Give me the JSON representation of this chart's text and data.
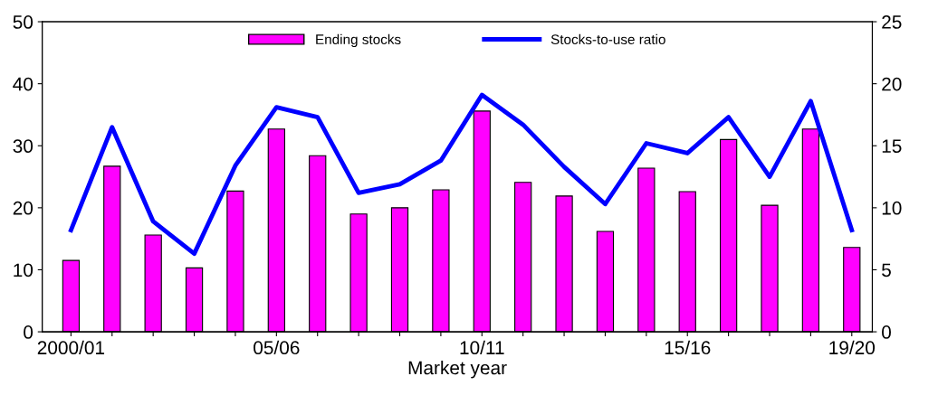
{
  "chart_data": {
    "type": "bar",
    "xlabel": "Market year",
    "categories": [
      "2000/01",
      null,
      null,
      null,
      null,
      "05/06",
      null,
      null,
      null,
      null,
      "10/11",
      null,
      null,
      null,
      null,
      "15/16",
      null,
      null,
      null,
      "19/20"
    ],
    "series": [
      {
        "name": "Ending stocks",
        "color": "#ff00ff",
        "values": [
          11.5,
          26.7,
          15.6,
          10.3,
          22.7,
          32.7,
          28.4,
          19.0,
          20.0,
          22.9,
          35.6,
          24.1,
          21.9,
          16.2,
          26.4,
          22.6,
          31.0,
          20.4,
          32.7,
          13.6
        ]
      },
      {
        "name": "Stocks-to-use ratio",
        "type": "line",
        "axis": "y2",
        "color": "#0000ff",
        "values": [
          8.2,
          16.5,
          8.9,
          6.3,
          13.4,
          18.1,
          17.3,
          11.2,
          11.9,
          13.8,
          19.1,
          16.7,
          13.3,
          10.3,
          15.2,
          14.4,
          17.3,
          12.5,
          18.6,
          8.2
        ]
      }
    ],
    "ylim": [
      0,
      50
    ],
    "yticks": [
      0,
      10,
      20,
      30,
      40,
      50
    ],
    "y2lim": [
      0,
      25
    ],
    "y2ticks": [
      0,
      5,
      10,
      15,
      20,
      25
    ],
    "grid": false,
    "legend": "top",
    "marker": "none",
    "line_style": "solid"
  }
}
